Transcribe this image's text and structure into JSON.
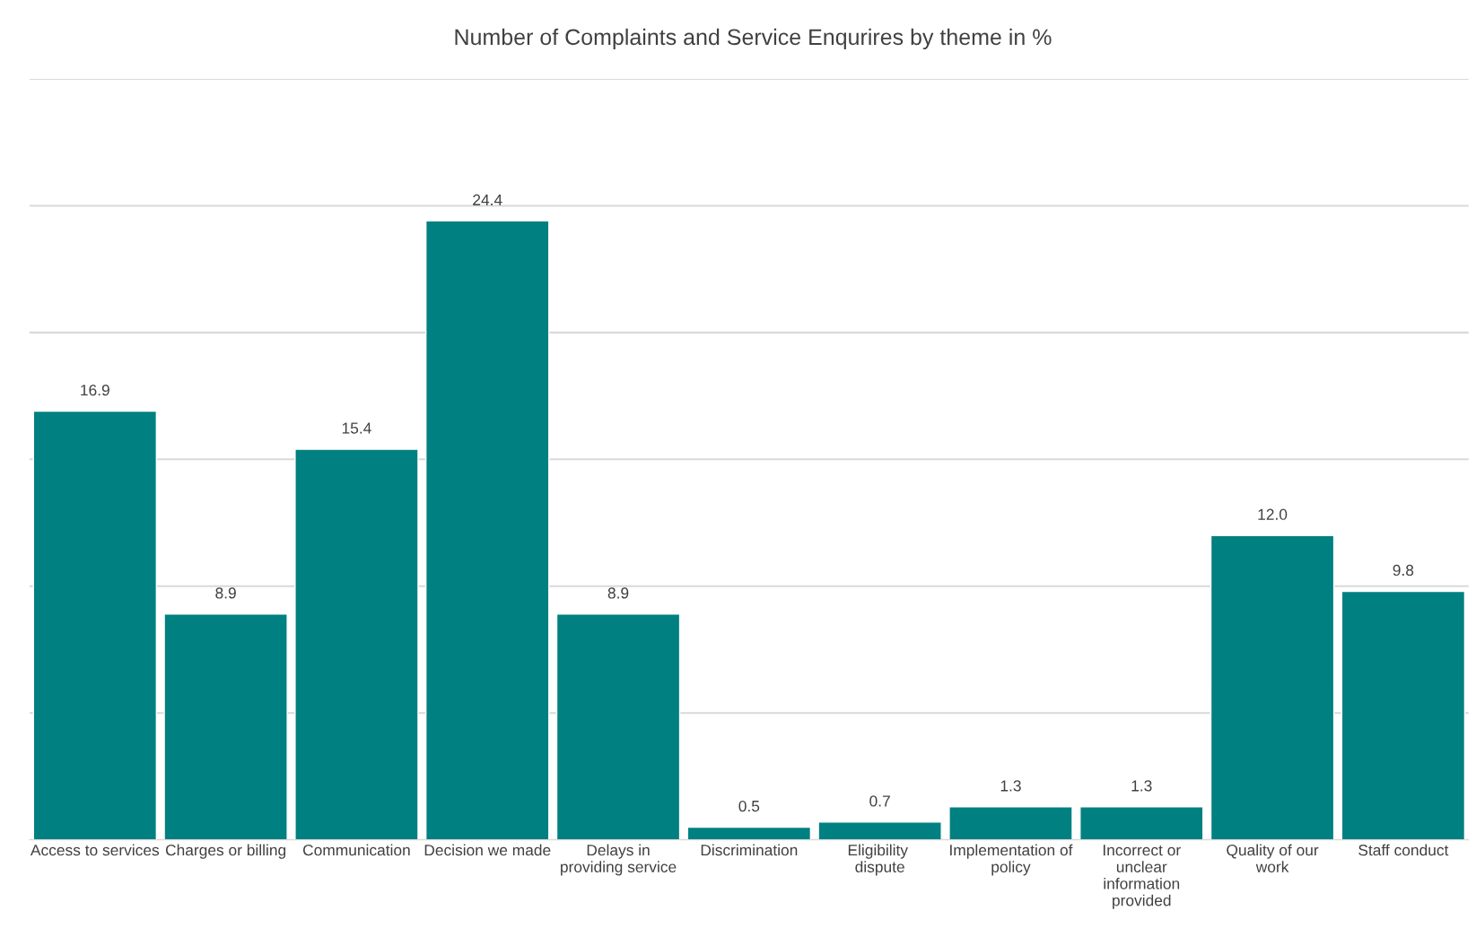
{
  "chart_data": {
    "type": "bar",
    "title": "Number of Complaints and Service Enqurires by theme in %",
    "categories": [
      "Access to services",
      "Charges or billing",
      "Communication",
      "Decision we made",
      "Delays in providing service",
      "Discrimination",
      "Eligibility  dispute",
      "Implementation of policy",
      "Incorrect or unclear information provided",
      "Quality of our work",
      "Staff conduct"
    ],
    "values": [
      16.9,
      8.9,
      15.4,
      24.4,
      8.9,
      0.5,
      0.7,
      1.3,
      1.3,
      12.0,
      9.8
    ],
    "value_labels": [
      "16.9",
      "8.9",
      "15.4",
      "24.4",
      "8.9",
      "0.5",
      "0.7",
      "1.3",
      "1.3",
      "12.0",
      "9.8"
    ],
    "color": "#008080",
    "ylim": [
      0,
      30
    ],
    "yticks": [
      {
        "value": 0,
        "label": null
      },
      {
        "value": 5,
        "label": null
      },
      {
        "value": 10,
        "label": null
      },
      {
        "value": 15,
        "label": null
      },
      {
        "value": 20,
        "label": null
      },
      {
        "value": 25,
        "label": null
      },
      {
        "value": 30,
        "label": null
      }
    ],
    "grid": "y",
    "tick_labels": "x"
  }
}
